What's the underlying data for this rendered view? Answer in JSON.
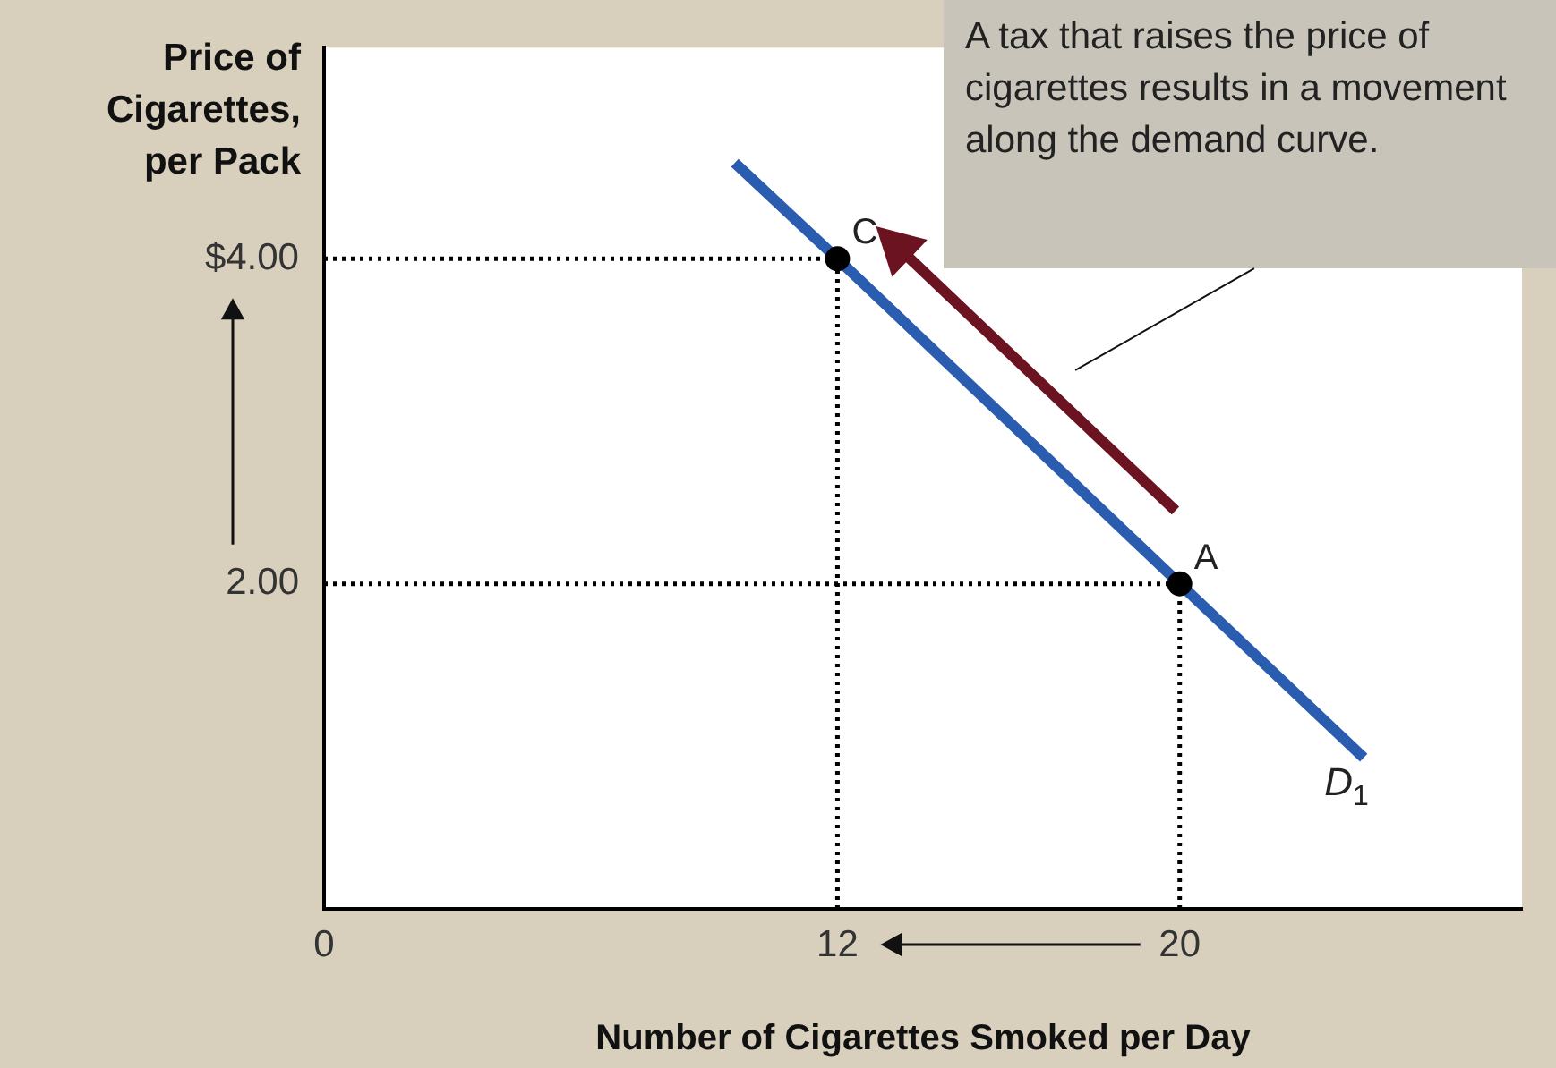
{
  "chart_data": {
    "type": "line",
    "xlabel": "Number of Cigarettes Smoked per Day",
    "ylabel": "Price of Cigarettes, per Pack",
    "xlim": [
      0,
      28
    ],
    "ylim": [
      0,
      5.3
    ],
    "xticks": [
      0,
      12,
      20
    ],
    "yticks": [
      {
        "value": 2,
        "label": "2.00"
      },
      {
        "value": 4,
        "label": "$4.00"
      }
    ],
    "grid": false,
    "legend": false,
    "annotations": [
      "A tax that raises the price of cigarettes results in a movement along the demand curve.",
      {
        "text": "C",
        "x": 12,
        "y": 4
      },
      {
        "text": "A",
        "x": 20,
        "y": 2
      }
    ],
    "series": [
      {
        "name": "D$_{1}$",
        "color": "#2a5db0",
        "x": [
          9.6,
          12,
          20,
          24.3
        ],
        "values": [
          4.59,
          4,
          2,
          0.93
        ],
        "marker": "none",
        "line_style": "solid"
      },
      {
        "type": "line",
        "color": "#000000",
        "x": [
          0,
          12
        ],
        "values": [
          4,
          4
        ],
        "marker": "none",
        "line_style": "dotted"
      },
      {
        "type": "line",
        "color": "#000000",
        "x": [
          12,
          12
        ],
        "values": [
          0,
          4
        ],
        "marker": "none",
        "line_style": "dotted"
      },
      {
        "type": "line",
        "color": "#000000",
        "x": [
          0,
          20
        ],
        "values": [
          2,
          2
        ],
        "marker": "none",
        "line_style": "dotted"
      },
      {
        "type": "line",
        "color": "#000000",
        "x": [
          20,
          20
        ],
        "values": [
          0,
          2
        ],
        "marker": "none",
        "line_style": "dotted"
      },
      {
        "type": "scatter",
        "color": "#000000",
        "x": [
          12,
          20
        ],
        "values": [
          4,
          2
        ],
        "marker": "circle"
      }
    ]
  }
}
